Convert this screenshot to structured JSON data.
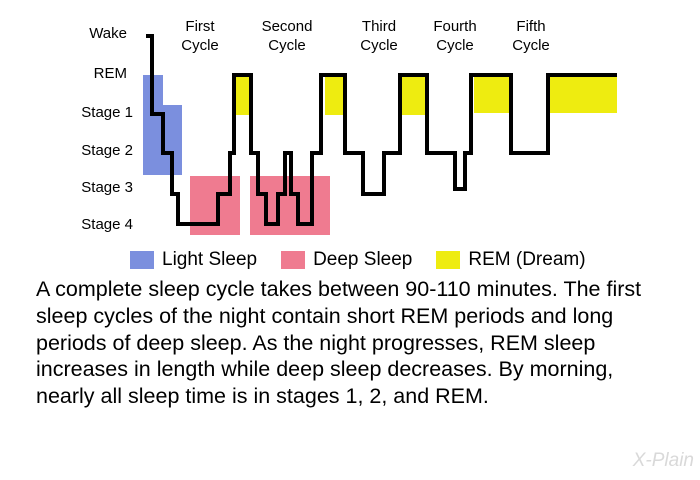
{
  "stage_labels": [
    {
      "id": "wake",
      "label": "Wake"
    },
    {
      "id": "rem",
      "label": "REM"
    },
    {
      "id": "s1",
      "label": "Stage 1"
    },
    {
      "id": "s2",
      "label": "Stage 2"
    },
    {
      "id": "s3",
      "label": "Stage 3"
    },
    {
      "id": "s4",
      "label": "Stage 4"
    }
  ],
  "cycles": [
    {
      "line1": "First",
      "line2": "Cycle"
    },
    {
      "line1": "Second",
      "line2": "Cycle"
    },
    {
      "line1": "Third",
      "line2": "Cycle"
    },
    {
      "line1": "Fourth",
      "line2": "Cycle"
    },
    {
      "line1": "Fifth",
      "line2": "Cycle"
    }
  ],
  "legend": [
    {
      "label": "Light Sleep",
      "color": "#7b8fde"
    },
    {
      "label": "Deep Sleep",
      "color": "#ef7b90"
    },
    {
      "label": "REM (Dream)",
      "color": "#eeec10"
    }
  ],
  "caption": "A complete sleep cycle takes between 90-110 minutes. The first sleep cycles of the night contain short REM periods and long periods of deep sleep. As the night progresses, REM sleep increases in length while deep sleep decreases. By morning, nearly all sleep time is in stages 1, 2, and REM.",
  "brand": "X-Plain",
  "colors": {
    "light": "#7b8fde",
    "deep": "#ef7b90",
    "rem": "#eeec10",
    "line": "#000000",
    "brand": "#d9d9d9"
  }
}
